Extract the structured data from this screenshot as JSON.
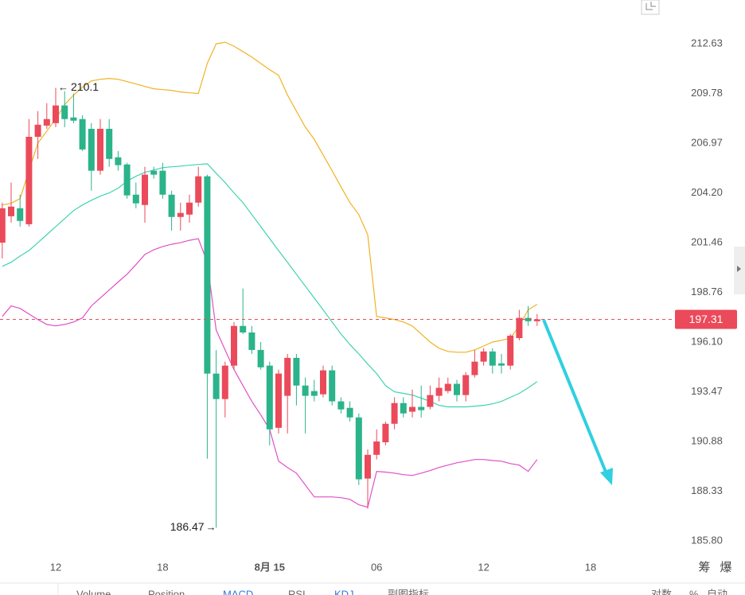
{
  "chart_data": {
    "type": "candlestick",
    "log_scale": true,
    "grid": false,
    "categories": [
      null,
      null,
      null,
      null,
      null,
      null,
      "12",
      null,
      null,
      null,
      null,
      null,
      null,
      null,
      null,
      null,
      null,
      null,
      "18",
      null,
      null,
      null,
      null,
      null,
      null,
      null,
      null,
      null,
      null,
      null,
      "8月 15",
      null,
      null,
      null,
      null,
      null,
      null,
      null,
      null,
      null,
      null,
      null,
      "06",
      null,
      null,
      null,
      null,
      null,
      null,
      null,
      null,
      null,
      null,
      null,
      "12",
      null,
      null,
      null,
      null,
      null,
      null,
      null,
      null,
      null,
      null,
      null,
      "18"
    ],
    "open": [
      201.46,
      202.91,
      203.35,
      202.47,
      207.33,
      207.96,
      208.1,
      209.1,
      208.42,
      208.33,
      207.78,
      205.43,
      207.78,
      206.18,
      205.78,
      204.1,
      203.53,
      205.43,
      205.43,
      204.1,
      202.87,
      203.0,
      203.66,
      205.12,
      194.43,
      193.09,
      194.85,
      196.96,
      196.61,
      195.68,
      194.85,
      191.59,
      193.26,
      195.26,
      193.8,
      193.51,
      193.34,
      194.6,
      192.97,
      192.63,
      192.13,
      188.97,
      190.19,
      190.84,
      191.8,
      192.88,
      192.43,
      192.68,
      192.68,
      193.26,
      193.51,
      193.89,
      193.3,
      194.35,
      195.06,
      195.6,
      194.97,
      194.85,
      196.31,
      197.39,
      197.21,
      null,
      null,
      null,
      null,
      null,
      null
    ],
    "high": [
      203.66,
      204.77,
      204.1,
      208.33,
      208.78,
      209.23,
      210.1,
      209.91,
      209.78,
      208.55,
      208.1,
      208.33,
      208.33,
      206.53,
      205.87,
      204.77,
      205.65,
      205.65,
      205.87,
      204.32,
      203.66,
      204.1,
      205.65,
      205.21,
      195.68,
      195.06,
      197.17,
      198.97,
      196.96,
      196.1,
      195.06,
      194.64,
      195.47,
      195.47,
      194.22,
      194.1,
      194.85,
      194.85,
      193.18,
      192.97,
      192.34,
      190.47,
      191.51,
      191.92,
      193.18,
      193.18,
      193.59,
      193.8,
      193.8,
      194.22,
      194.22,
      194.1,
      194.51,
      195.68,
      195.77,
      195.77,
      195.47,
      196.53,
      197.82,
      198.03,
      197.6,
      null,
      null,
      null,
      null,
      null,
      null
    ],
    "low": [
      200.6,
      202.56,
      202.34,
      202.34,
      206.09,
      207.78,
      207.87,
      207.87,
      208.1,
      206.53,
      204.32,
      205.21,
      205.65,
      205.43,
      203.88,
      203.35,
      202.56,
      204.99,
      203.88,
      202.12,
      202.12,
      202.56,
      203.44,
      189.99,
      186.47,
      192.13,
      194.64,
      196.53,
      195.47,
      194.64,
      190.68,
      191.3,
      191.3,
      192.76,
      191.3,
      192.97,
      193.18,
      192.76,
      192.34,
      191.92,
      188.64,
      187.43,
      189.95,
      190.68,
      191.51,
      192.13,
      192.13,
      192.13,
      192.55,
      192.97,
      193.39,
      192.97,
      192.97,
      194.22,
      194.85,
      194.43,
      194.43,
      194.64,
      196.19,
      196.96,
      196.96,
      null,
      null,
      null,
      null,
      null,
      null
    ],
    "close": [
      203.35,
      203.44,
      202.65,
      207.33,
      208.01,
      208.33,
      209.1,
      208.33,
      208.24,
      206.62,
      205.43,
      207.78,
      206.09,
      205.74,
      204.06,
      203.62,
      205.21,
      205.21,
      204.1,
      202.87,
      203.09,
      203.66,
      205.12,
      194.43,
      193.09,
      194.85,
      196.96,
      196.61,
      195.68,
      194.76,
      191.51,
      194.43,
      195.26,
      193.8,
      193.26,
      193.26,
      194.6,
      192.97,
      192.55,
      192.13,
      188.93,
      190.19,
      190.88,
      191.8,
      192.88,
      192.34,
      192.68,
      192.51,
      193.3,
      193.68,
      193.89,
      193.3,
      194.35,
      195.06,
      195.6,
      194.85,
      194.85,
      196.44,
      197.39,
      197.21,
      197.31,
      null,
      null,
      null,
      null,
      null,
      null
    ],
    "up_color": "#eb4a5a",
    "down_color": "#2bb38a",
    "bands": [
      {
        "color": "#f0b323",
        "values": [
          203.53,
          203.62,
          203.88,
          205.43,
          206.97,
          207.65,
          208.33,
          209.14,
          209.69,
          210.14,
          210.5,
          210.59,
          210.64,
          210.59,
          210.46,
          210.32,
          210.18,
          210.05,
          210.0,
          209.96,
          209.87,
          209.82,
          209.78,
          211.5,
          212.63,
          212.72,
          212.49,
          212.18,
          211.86,
          211.5,
          211.14,
          210.82,
          209.69,
          208.78,
          207.87,
          207.19,
          206.31,
          205.43,
          204.54,
          203.66,
          203.0,
          201.9,
          197.47,
          197.39,
          197.3,
          197.17,
          196.96,
          196.53,
          196.1,
          195.77,
          195.6,
          195.56,
          195.56,
          195.68,
          195.89,
          196.1,
          196.19,
          196.31,
          196.96,
          197.82,
          198.12,
          null,
          null,
          null,
          null,
          null,
          null
        ]
      },
      {
        "color": "#3fd3b0",
        "values": [
          200.17,
          200.39,
          200.73,
          201.03,
          201.46,
          201.9,
          202.34,
          202.78,
          203.22,
          203.53,
          203.79,
          204.02,
          204.2,
          204.46,
          204.85,
          205.12,
          205.34,
          205.47,
          205.6,
          205.65,
          205.69,
          205.74,
          205.78,
          205.82,
          205.29,
          204.77,
          204.2,
          203.66,
          203.0,
          202.34,
          201.68,
          201.03,
          200.39,
          199.74,
          199.1,
          198.46,
          197.82,
          197.17,
          196.53,
          195.97,
          195.47,
          194.93,
          194.43,
          193.8,
          193.47,
          193.39,
          193.3,
          193.14,
          192.97,
          192.76,
          192.68,
          192.68,
          192.68,
          192.72,
          192.76,
          192.84,
          192.97,
          193.18,
          193.39,
          193.68,
          194.01,
          null,
          null,
          null,
          null,
          null,
          null
        ]
      },
      {
        "color": "#e050c8",
        "values": [
          197.47,
          198.03,
          197.9,
          197.6,
          197.3,
          197.04,
          196.96,
          197.04,
          197.17,
          197.39,
          198.03,
          198.46,
          198.89,
          199.32,
          199.74,
          200.26,
          200.82,
          201.07,
          201.25,
          201.37,
          201.46,
          201.59,
          201.68,
          200.39,
          196.74,
          195.68,
          194.64,
          193.8,
          192.97,
          192.26,
          191.51,
          189.86,
          189.54,
          189.25,
          188.64,
          188.03,
          188.03,
          188.03,
          187.99,
          187.91,
          187.63,
          187.51,
          189.34,
          189.3,
          189.25,
          189.17,
          189.13,
          189.25,
          189.38,
          189.54,
          189.66,
          189.78,
          189.86,
          189.95,
          189.95,
          189.9,
          189.86,
          189.74,
          189.66,
          189.34,
          189.95,
          null,
          null,
          null,
          null,
          null,
          null
        ]
      }
    ],
    "ylim": [
      185.0,
      215.17
    ],
    "yticks": [
      212.63,
      209.78,
      206.97,
      {
        "value": 204.2,
        "label": "204.20"
      },
      201.46,
      198.76,
      {
        "value": 196.1,
        "label": "196.10"
      },
      193.47,
      190.88,
      188.33,
      {
        "value": 185.8,
        "label": "185.80"
      }
    ],
    "side_buttons": [
      "筹",
      "爆"
    ],
    "tabs": [
      "Volume",
      "Position",
      "MACD",
      "RSI",
      "KDJ",
      "副图指标",
      "对数",
      "%",
      "自动"
    ]
  }
}
